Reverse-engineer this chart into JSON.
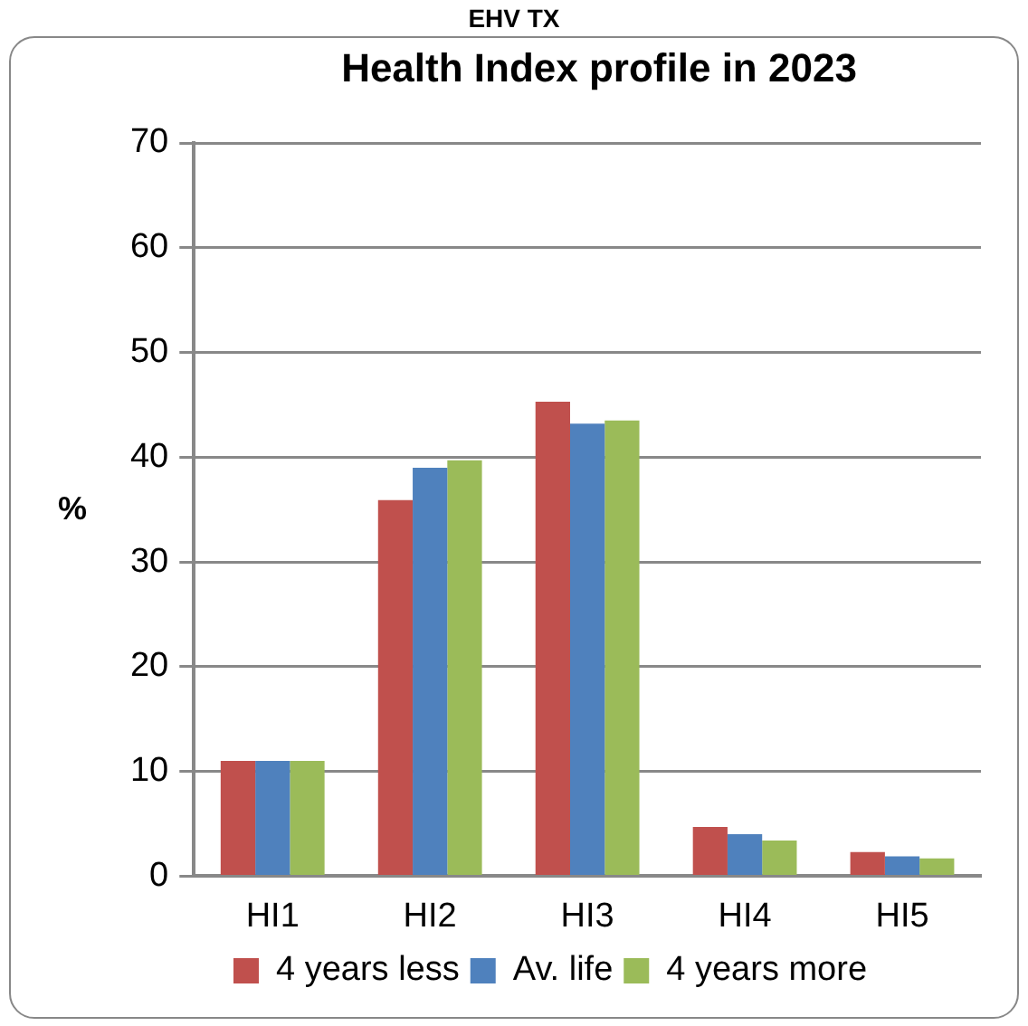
{
  "chart_data": {
    "type": "bar",
    "title": "EHV TX",
    "subtitle": "Health Index profile in 2023",
    "ylabel": "%",
    "categories": [
      "HI1",
      "HI2",
      "HI3",
      "HI4",
      "HI5"
    ],
    "series": [
      {
        "name": "4 years less",
        "color": "#c0504d",
        "values": [
          11.0,
          35.9,
          45.3,
          4.7,
          2.3
        ]
      },
      {
        "name": "Av. life",
        "color": "#4f81bd",
        "values": [
          11.0,
          39.0,
          43.2,
          4.0,
          1.9
        ]
      },
      {
        "name": "4 years more",
        "color": "#9bbb59",
        "values": [
          11.0,
          39.7,
          43.5,
          3.4,
          1.7
        ]
      }
    ],
    "ylim": [
      0,
      70
    ],
    "yticks": [
      0,
      10,
      20,
      30,
      40,
      50,
      60,
      70
    ],
    "grid": "y",
    "legend": "bottom"
  }
}
